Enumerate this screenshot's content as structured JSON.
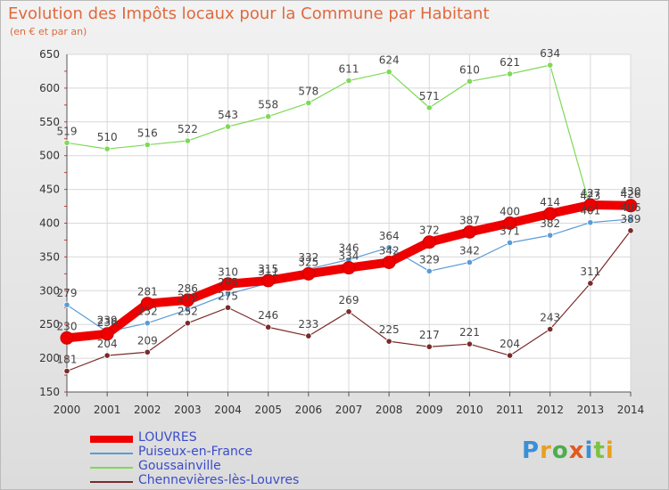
{
  "title": "Evolution des Impôts locaux pour la Commune par Habitant",
  "subtitle": "(en € et par an)",
  "logo": "Proxiti",
  "chart_data": {
    "type": "line",
    "x": [
      "2000",
      "2001",
      "2002",
      "2003",
      "2004",
      "2005",
      "2006",
      "2007",
      "2008",
      "2009",
      "2010",
      "2011",
      "2012",
      "2013",
      "2014"
    ],
    "ylim": [
      150,
      650
    ],
    "yticks": [
      150,
      200,
      250,
      300,
      350,
      400,
      450,
      500,
      550,
      600,
      650
    ],
    "grid": true,
    "legend_placement": "bottom-left",
    "series": [
      {
        "name": "LOUVRES",
        "color": "#ee0000",
        "values": [
          230,
          236,
          281,
          286,
          310,
          315,
          325,
          334,
          342,
          372,
          387,
          400,
          414,
          427,
          426
        ]
      },
      {
        "name": "Puiseux-en-France",
        "color": "#5b9bd5",
        "values": [
          279,
          239,
          252,
          272,
          295,
          311,
          332,
          346,
          364,
          329,
          342,
          371,
          382,
          401,
          406
        ]
      },
      {
        "name": "Goussainville",
        "color": "#7ed957",
        "values": [
          519,
          510,
          516,
          522,
          543,
          558,
          578,
          611,
          624,
          571,
          610,
          621,
          634,
          423,
          430
        ]
      },
      {
        "name": "Chennevières-lès-Louvres",
        "color": "#7a2a2a",
        "values": [
          181,
          204,
          209,
          252,
          275,
          246,
          233,
          269,
          225,
          217,
          221,
          204,
          243,
          311,
          389
        ]
      }
    ]
  }
}
